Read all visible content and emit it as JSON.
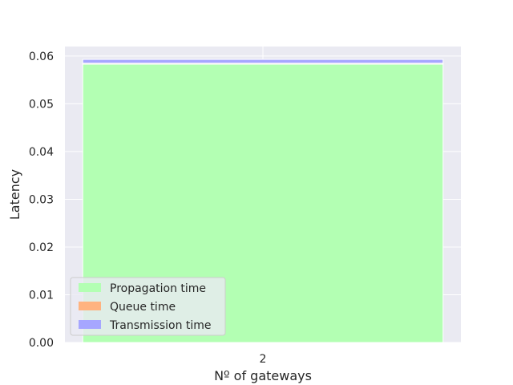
{
  "chart_data": {
    "type": "bar",
    "stacked": true,
    "title": "",
    "xlabel": "Nº of gateways",
    "ylabel": "Latency",
    "categories": [
      "2"
    ],
    "ylim": [
      0,
      0.062
    ],
    "yticks": [
      "0.00",
      "0.01",
      "0.02",
      "0.03",
      "0.04",
      "0.05",
      "0.06"
    ],
    "ytick_values": [
      0,
      0.01,
      0.02,
      0.03,
      0.04,
      0.05,
      0.06
    ],
    "grid": true,
    "legend_position": "lower-left",
    "series": [
      {
        "name": "Propagation time",
        "values": [
          0.0583
        ],
        "color": "#b3ffb3"
      },
      {
        "name": "Queue time",
        "values": [
          0.0002
        ],
        "color": "#ffb380"
      },
      {
        "name": "Transmission time",
        "values": [
          0.0008
        ],
        "color": "#a6a6ff"
      }
    ]
  },
  "colors": {
    "plot_background": "#eaeaf2",
    "grid": "#ffffff",
    "text": "#262626"
  }
}
